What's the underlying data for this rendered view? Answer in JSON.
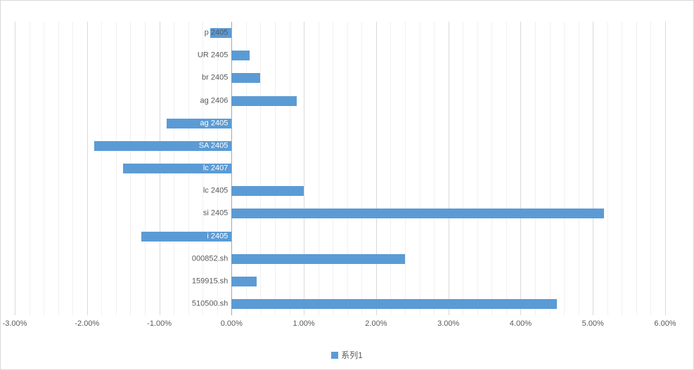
{
  "chart": {
    "background": "#ffffff",
    "border_color": "#d9d9d9",
    "bar_color": "#5b9bd5",
    "gridline_major_color": "#d9d9d9",
    "gridline_minor_color": "#f0f0f0",
    "axis_line_color": "#a6a6a6",
    "label_color": "#595959",
    "negative_label_color": "#ffffff",
    "legend": {
      "label": "系列1",
      "marker_color": "#5b9bd5"
    }
  },
  "chart_data": {
    "type": "bar",
    "orientation": "horizontal",
    "title": "",
    "series_name": "系列1",
    "categories": [
      "p 2405",
      "UR 2405",
      "br 2405",
      "ag 2406",
      "ag 2405",
      "SA 2405",
      "lc 2407",
      "lc 2405",
      "si 2405",
      "i 2405",
      "000852.sh",
      "159915.sh",
      "510500.sh"
    ],
    "values": [
      -0.3,
      0.25,
      0.4,
      0.9,
      -0.9,
      -1.9,
      -1.5,
      1.0,
      5.15,
      -1.25,
      2.4,
      0.35,
      4.5
    ],
    "value_unit": "%",
    "xlim": [
      -3,
      6
    ],
    "x_major_tick": 1,
    "x_minor_tick": 0.2,
    "tick_labels": [
      "-3.00%",
      "-2.00%",
      "-1.00%",
      "0.00%",
      "1.00%",
      "2.00%",
      "3.00%",
      "4.00%",
      "5.00%",
      "6.00%"
    ],
    "grid": true,
    "legend_position": "bottom"
  }
}
